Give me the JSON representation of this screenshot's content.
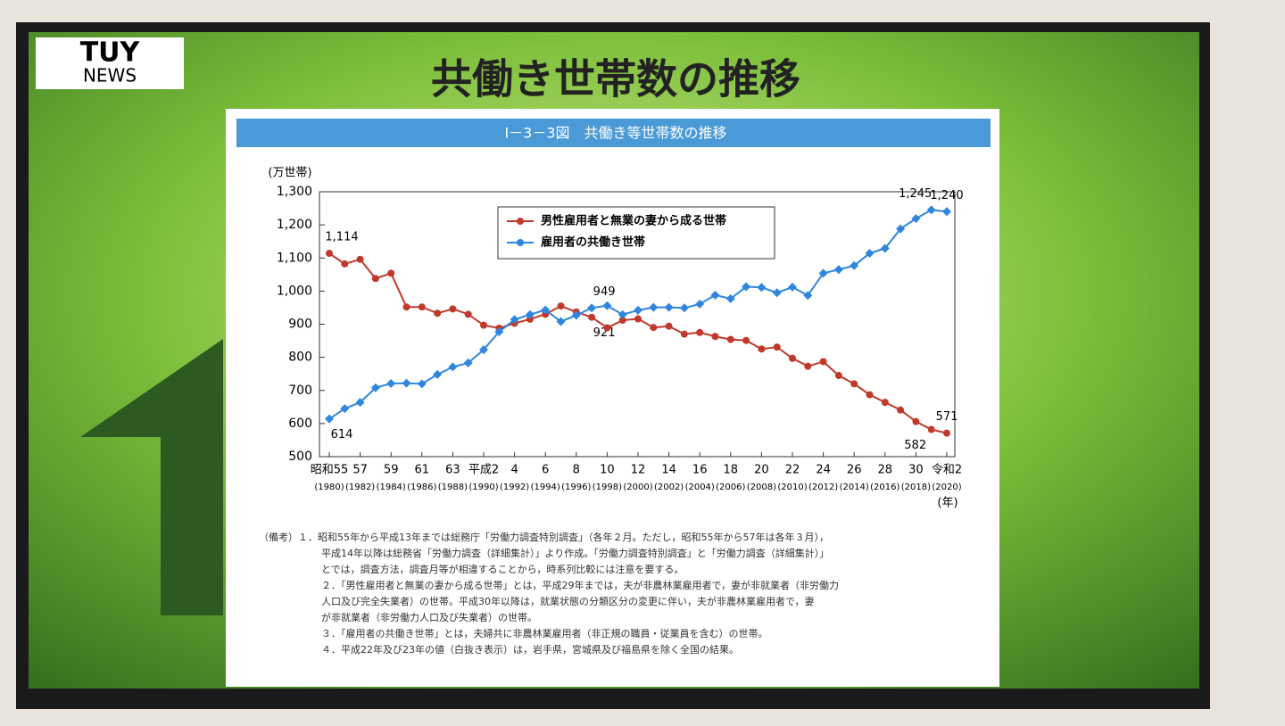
{
  "logo": {
    "brand": "TUY",
    "sub": "NEWS"
  },
  "slide_title": "共働き世帯数の推移",
  "chart_data": {
    "type": "line",
    "title": "I－3－3図　共働き等世帯数の推移",
    "y_label": "(万世帯)",
    "x_label": "(年)",
    "x": [
      1980,
      1981,
      1982,
      1983,
      1984,
      1985,
      1986,
      1987,
      1988,
      1989,
      1990,
      1991,
      1992,
      1993,
      1994,
      1995,
      1996,
      1997,
      1998,
      1999,
      2000,
      2001,
      2002,
      2003,
      2004,
      2005,
      2006,
      2007,
      2008,
      2009,
      2010,
      2011,
      2012,
      2013,
      2014,
      2015,
      2016,
      2017,
      2018,
      2019,
      2020
    ],
    "xlim": [
      1980,
      2020
    ],
    "xticks": [
      {
        "value": 1980,
        "label": "昭和55",
        "year": "(1980)"
      },
      {
        "value": 1982,
        "label": "57",
        "year": "(1982)"
      },
      {
        "value": 1984,
        "label": "59",
        "year": "(1984)"
      },
      {
        "value": 1986,
        "label": "61",
        "year": "(1986)"
      },
      {
        "value": 1988,
        "label": "63",
        "year": "(1988)"
      },
      {
        "value": 1990,
        "label": "平成2",
        "year": "(1990)"
      },
      {
        "value": 1992,
        "label": "4",
        "year": "(1992)"
      },
      {
        "value": 1994,
        "label": "6",
        "year": "(1994)"
      },
      {
        "value": 1996,
        "label": "8",
        "year": "(1996)"
      },
      {
        "value": 1998,
        "label": "10",
        "year": "(1998)"
      },
      {
        "value": 2000,
        "label": "12",
        "year": "(2000)"
      },
      {
        "value": 2002,
        "label": "14",
        "year": "(2002)"
      },
      {
        "value": 2004,
        "label": "16",
        "year": "(2004)"
      },
      {
        "value": 2006,
        "label": "18",
        "year": "(2006)"
      },
      {
        "value": 2008,
        "label": "20",
        "year": "(2008)"
      },
      {
        "value": 2010,
        "label": "22",
        "year": "(2010)"
      },
      {
        "value": 2012,
        "label": "24",
        "year": "(2012)"
      },
      {
        "value": 2014,
        "label": "26",
        "year": "(2014)"
      },
      {
        "value": 2016,
        "label": "28",
        "year": "(2016)"
      },
      {
        "value": 2018,
        "label": "30",
        "year": "(2018)"
      },
      {
        "value": 2020,
        "label": "令和2",
        "year": "(2020)"
      }
    ],
    "ylim": [
      500,
      1300
    ],
    "yticks": [
      500,
      600,
      700,
      800,
      900,
      {
        "value": 1000,
        "label": "1,000"
      },
      {
        "value": 1100,
        "label": "1,100"
      },
      {
        "value": 1200,
        "label": "1,200"
      },
      {
        "value": 1300,
        "label": "1,300"
      }
    ],
    "series": [
      {
        "name": "男性雇用者と無業の妻から成る世帯",
        "color": "#c0392b",
        "marker": "circle",
        "values": [
          1114,
          1082,
          1096,
          1038,
          1054,
          952,
          952,
          933,
          946,
          930,
          897,
          888,
          903,
          915,
          930,
          955,
          937,
          921,
          889,
          912,
          916,
          890,
          894,
          870,
          875,
          863,
          854,
          851,
          825,
          831,
          797,
          773,
          787,
          745,
          720,
          687,
          664,
          641,
          606,
          582,
          571
        ],
        "value_labels": [
          "1,114",
          null,
          null,
          null,
          null,
          null,
          null,
          null,
          null,
          null,
          null,
          null,
          null,
          null,
          null,
          null,
          null,
          "921",
          null,
          null,
          null,
          null,
          null,
          null,
          null,
          null,
          null,
          null,
          null,
          null,
          null,
          null,
          null,
          null,
          null,
          null,
          null,
          null,
          null,
          "582",
          "571"
        ]
      },
      {
        "name": "雇用者の共働き世帯",
        "color": "#2e86de",
        "marker": "diamond",
        "values": [
          614,
          645,
          664,
          708,
          721,
          722,
          720,
          748,
          771,
          783,
          823,
          877,
          914,
          929,
          943,
          908,
          927,
          949,
          956,
          929,
          942,
          951,
          951,
          949,
          961,
          988,
          977,
          1013,
          1011,
          995,
          1012,
          987,
          1054,
          1065,
          1077,
          1114,
          1129,
          1188,
          1219,
          1245,
          1240
        ],
        "value_labels": [
          "614",
          null,
          null,
          null,
          null,
          null,
          null,
          null,
          null,
          null,
          null,
          null,
          null,
          null,
          null,
          null,
          null,
          "949",
          null,
          null,
          null,
          null,
          null,
          null,
          null,
          null,
          null,
          null,
          null,
          null,
          null,
          null,
          null,
          null,
          null,
          null,
          null,
          null,
          null,
          "1,245",
          "1,240"
        ]
      }
    ],
    "notes": [
      "（備考）１．昭和55年から平成13年までは総務庁「労働力調査特別調査」（各年２月。ただし，昭和55年から57年は各年３月），",
      "平成14年以降は総務省「労働力調査（詳細集計）」より作成。「労働力調査特別調査」と「労働力調査（詳細集計）」",
      "とでは，調査方法，調査月等が相違することから，時系列比較には注意を要する。",
      "２．「男性雇用者と無業の妻から成る世帯」とは，平成29年までは，夫が非農林業雇用者で，妻が非就業者（非労働力",
      "人口及び完全失業者）の世帯。平成30年以降は，就業状態の分類区分の変更に伴い，夫が非農林業雇用者で，妻",
      "が非就業者（非労働力人口及び失業者）の世帯。",
      "３．「雇用者の共働き世帯」とは，夫婦共に非農林業雇用者（非正規の職員・従業員を含む）の世帯。",
      "４．平成22年及び23年の値（白抜き表示）は，岩手県，宮城県及び福島県を除く全国の結果。"
    ]
  }
}
